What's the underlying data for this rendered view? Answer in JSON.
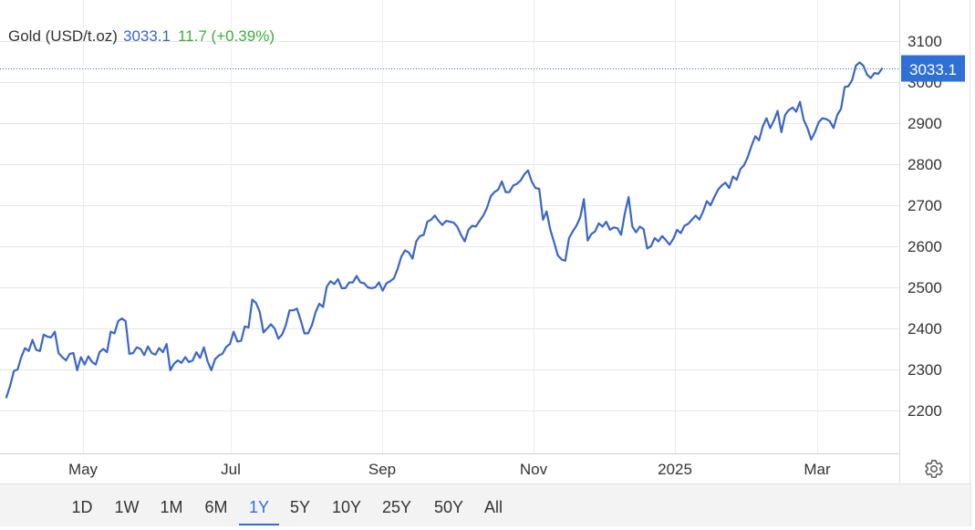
{
  "legend": {
    "name": "Gold (USD/t.oz)",
    "price": "3033.1",
    "change": "11.7 (+0.39%)"
  },
  "price_tag": "3033.1",
  "colors": {
    "line": "#3a66c8",
    "price": "#3a66c8",
    "change": "#3cae3c",
    "price_tag_bg": "#2f6fd6",
    "grid": "#e6e6e6",
    "range_active": "#2f6fd6"
  },
  "settings_icon": "gear-icon",
  "ranges": [
    "1D",
    "1W",
    "1M",
    "6M",
    "1Y",
    "5Y",
    "10Y",
    "25Y",
    "50Y",
    "All"
  ],
  "active_range": "1Y",
  "chart_data": {
    "type": "line",
    "title": "Gold (USD/t.oz)",
    "y_axis_position": "right",
    "ylim": [
      2100,
      3200
    ],
    "y_ticks": [
      2200,
      2300,
      2400,
      2500,
      2600,
      2700,
      2800,
      2900,
      3000,
      3100
    ],
    "x_ticks": [
      "May",
      "Jul",
      "Sep",
      "Nov",
      "2025",
      "Mar"
    ],
    "grid": true,
    "last_value": 3033.1,
    "series": [
      {
        "name": "Gold (USD/t.oz)",
        "values": [
          2232,
          2260,
          2296,
          2300,
          2330,
          2352,
          2345,
          2372,
          2348,
          2345,
          2385,
          2380,
          2378,
          2392,
          2340,
          2330,
          2322,
          2338,
          2340,
          2298,
          2330,
          2312,
          2332,
          2318,
          2312,
          2342,
          2350,
          2342,
          2392,
          2388,
          2418,
          2424,
          2418,
          2338,
          2340,
          2354,
          2350,
          2335,
          2356,
          2340,
          2336,
          2352,
          2342,
          2362,
          2298,
          2314,
          2322,
          2316,
          2330,
          2318,
          2322,
          2342,
          2328,
          2354,
          2320,
          2298,
          2325,
          2334,
          2338,
          2355,
          2362,
          2392,
          2368,
          2370,
          2405,
          2402,
          2470,
          2462,
          2440,
          2390,
          2400,
          2410,
          2400,
          2375,
          2385,
          2408,
          2444,
          2444,
          2448,
          2420,
          2388,
          2388,
          2408,
          2440,
          2460,
          2452,
          2502,
          2515,
          2508,
          2520,
          2498,
          2498,
          2512,
          2512,
          2528,
          2512,
          2510,
          2500,
          2498,
          2500,
          2512,
          2492,
          2510,
          2515,
          2522,
          2545,
          2575,
          2590,
          2585,
          2570,
          2612,
          2625,
          2628,
          2660,
          2665,
          2675,
          2662,
          2652,
          2662,
          2660,
          2658,
          2648,
          2628,
          2612,
          2640,
          2650,
          2648,
          2662,
          2675,
          2694,
          2722,
          2732,
          2738,
          2758,
          2732,
          2732,
          2748,
          2752,
          2760,
          2775,
          2785,
          2758,
          2742,
          2740,
          2665,
          2685,
          2640,
          2610,
          2578,
          2568,
          2565,
          2620,
          2636,
          2650,
          2670,
          2715,
          2614,
          2630,
          2636,
          2656,
          2648,
          2660,
          2640,
          2646,
          2644,
          2628,
          2680,
          2720,
          2648,
          2634,
          2648,
          2642,
          2595,
          2600,
          2620,
          2612,
          2625,
          2615,
          2604,
          2618,
          2640,
          2632,
          2650,
          2655,
          2665,
          2675,
          2665,
          2685,
          2710,
          2700,
          2720,
          2738,
          2748,
          2755,
          2742,
          2770,
          2762,
          2788,
          2798,
          2818,
          2845,
          2868,
          2858,
          2892,
          2912,
          2888,
          2906,
          2930,
          2878,
          2920,
          2932,
          2938,
          2928,
          2952,
          2908,
          2888,
          2860,
          2878,
          2902,
          2912,
          2910,
          2905,
          2888,
          2920,
          2935,
          2988,
          2990,
          3005,
          3040,
          3048,
          3040,
          3018,
          3010,
          3022,
          3020,
          3033
        ]
      }
    ]
  }
}
